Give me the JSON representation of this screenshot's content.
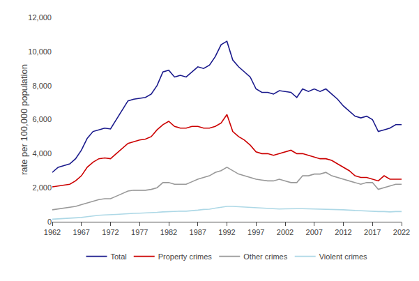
{
  "chart_data": {
    "type": "line",
    "y_label": "rate per 100,000 population",
    "x": [
      1962,
      1963,
      1964,
      1965,
      1966,
      1967,
      1968,
      1969,
      1970,
      1971,
      1972,
      1973,
      1974,
      1975,
      1976,
      1977,
      1978,
      1979,
      1980,
      1981,
      1982,
      1983,
      1984,
      1985,
      1986,
      1987,
      1988,
      1989,
      1990,
      1991,
      1992,
      1993,
      1994,
      1995,
      1996,
      1997,
      1998,
      1999,
      2000,
      2001,
      2002,
      2003,
      2004,
      2005,
      2006,
      2007,
      2008,
      2009,
      2010,
      2011,
      2012,
      2013,
      2014,
      2015,
      2016,
      2017,
      2018,
      2019,
      2020,
      2021,
      2022
    ],
    "series": [
      {
        "name": "Total",
        "color": "#1a1a8c",
        "values": [
          2900,
          3200,
          3300,
          3400,
          3700,
          4200,
          4900,
          5300,
          5400,
          5500,
          5450,
          6000,
          6500,
          7100,
          7200,
          7250,
          7300,
          7500,
          8000,
          8800,
          8900,
          8500,
          8600,
          8500,
          8800,
          9100,
          9000,
          9200,
          9700,
          10400,
          10600,
          9500,
          9100,
          8800,
          8500,
          7800,
          7600,
          7600,
          7500,
          7700,
          7650,
          7600,
          7300,
          7800,
          7650,
          7800,
          7650,
          7800,
          7500,
          7200,
          6800,
          6500,
          6200,
          6100,
          6200,
          6000,
          5300,
          5400,
          5500,
          5700,
          5700
        ]
      },
      {
        "name": "Property crimes",
        "color": "#cc0000",
        "values": [
          2050,
          2100,
          2150,
          2200,
          2400,
          2700,
          3200,
          3500,
          3700,
          3750,
          3700,
          4000,
          4300,
          4600,
          4700,
          4800,
          4850,
          5000,
          5400,
          5700,
          5900,
          5600,
          5500,
          5500,
          5600,
          5600,
          5500,
          5500,
          5600,
          5800,
          6300,
          5300,
          5000,
          4800,
          4500,
          4100,
          4000,
          4000,
          3900,
          4000,
          4100,
          4200,
          4000,
          4000,
          3900,
          3800,
          3700,
          3700,
          3600,
          3400,
          3200,
          3000,
          2700,
          2600,
          2600,
          2500,
          2400,
          2700,
          2500,
          2500,
          2500
        ]
      },
      {
        "name": "Other crimes",
        "color": "#999999",
        "values": [
          700,
          750,
          800,
          840,
          900,
          1000,
          1100,
          1200,
          1300,
          1350,
          1350,
          1500,
          1650,
          1800,
          1850,
          1850,
          1850,
          1900,
          2000,
          2300,
          2300,
          2200,
          2200,
          2200,
          2350,
          2500,
          2600,
          2700,
          2900,
          3000,
          3200,
          3000,
          2800,
          2700,
          2600,
          2500,
          2450,
          2400,
          2400,
          2500,
          2400,
          2300,
          2300,
          2700,
          2700,
          2800,
          2800,
          2900,
          2700,
          2600,
          2500,
          2400,
          2300,
          2200,
          2300,
          2300,
          1900,
          2000,
          2100,
          2200,
          2200
        ]
      },
      {
        "name": "Violent crimes",
        "color": "#add8e6",
        "values": [
          150,
          170,
          180,
          190,
          210,
          250,
          300,
          350,
          380,
          400,
          400,
          430,
          450,
          480,
          490,
          500,
          510,
          520,
          550,
          580,
          600,
          610,
          620,
          620,
          640,
          680,
          720,
          740,
          800,
          850,
          900,
          900,
          880,
          870,
          850,
          830,
          800,
          780,
          760,
          750,
          760,
          780,
          770,
          770,
          760,
          760,
          750,
          760,
          740,
          720,
          700,
          680,
          660,
          640,
          640,
          600,
          600,
          600,
          580,
          600,
          600
        ]
      }
    ],
    "xlim": [
      1962,
      2022
    ],
    "xticks": [
      1962,
      1967,
      1972,
      1977,
      1982,
      1987,
      1992,
      1997,
      2002,
      2007,
      2012,
      2017,
      2022
    ],
    "ylim": [
      0,
      12000
    ],
    "yticks": [
      0,
      {
        "value": 2000,
        "label": "2,000"
      },
      {
        "value": 4000,
        "label": "4,000"
      },
      {
        "value": 6000,
        "label": "6,000"
      },
      {
        "value": 8000,
        "label": "8,000"
      },
      {
        "value": 10000,
        "label": "10,000"
      },
      {
        "value": 12000,
        "label": "12,000"
      }
    ],
    "grid": false,
    "legend": "bottom"
  }
}
